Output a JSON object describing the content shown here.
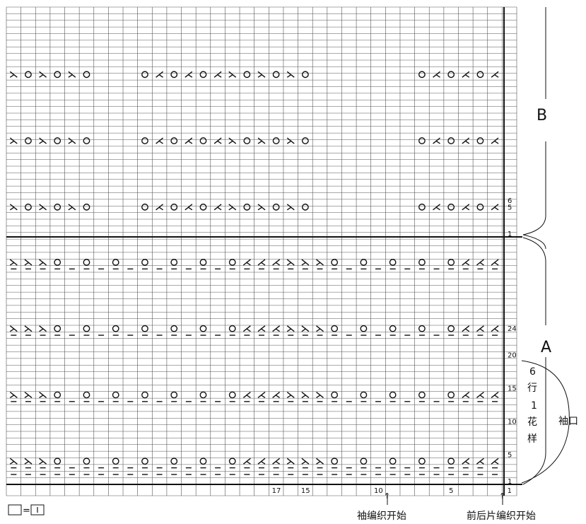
{
  "grid": {
    "columns": 35,
    "rows": 72,
    "x_numbers": [
      "17",
      "15",
      "10",
      "5",
      "1"
    ],
    "x_number_cols": [
      17,
      15,
      10,
      5,
      1
    ],
    "row_numbers_A": [
      "24",
      "20",
      "15",
      "10",
      "5",
      "1"
    ],
    "row_numbers_A_rows": [
      24,
      20,
      15,
      10,
      5,
      1
    ],
    "row_numbers_B": [
      "6",
      "5",
      "1"
    ],
    "row_numbers_B_rows": [
      6,
      5,
      1
    ]
  },
  "symbols": {
    "yo": "O",
    "k2tog": "⋌",
    "ssk": "⋋",
    "purl": "−"
  },
  "section_B": {
    "label": "B",
    "pattern_rows": [
      5,
      15,
      25
    ],
    "groups": [
      {
        "start_col": 35,
        "seq": [
          "ssk",
          "yo",
          "ssk",
          "yo",
          "ssk",
          "yo"
        ]
      },
      {
        "start_col": 26,
        "seq": [
          "yo",
          "k2tog",
          "yo",
          "k2tog",
          "yo",
          "k2tog",
          "ssk",
          "yo",
          "ssk",
          "yo",
          "ssk",
          "yo"
        ]
      },
      {
        "start_col": 7,
        "seq": [
          "yo",
          "k2tog",
          "yo",
          "k2tog",
          "yo",
          "k2tog"
        ]
      }
    ]
  },
  "section_A": {
    "label": "A",
    "lace_rows": [
      4,
      14,
      24,
      34
    ],
    "purl_rows": [
      2,
      3,
      13,
      23,
      33
    ],
    "lace_sequence": [
      "ssk",
      "ssk",
      "ssk",
      "yo",
      "",
      "yo",
      "",
      "yo",
      "",
      "yo",
      "",
      "yo",
      "",
      "yo",
      "",
      "yo",
      "k2tog",
      "k2tog",
      "k2tog",
      "ssk",
      "ssk",
      "ssk",
      "yo",
      "",
      "yo",
      "",
      "yo",
      "",
      "yo",
      "",
      "yo",
      "k2tog",
      "k2tog",
      "k2tog",
      ""
    ]
  },
  "annotations": {
    "repeat_text": [
      "6",
      "行",
      "1",
      "花",
      "样"
    ],
    "cuff_label": "袖口",
    "sleeve_start": "袖编织开始",
    "body_start": "前后片编织开始",
    "legend_eq": "=",
    "arrow": "↑"
  },
  "colors": {
    "ink": "#111111",
    "grid": "#555555",
    "paper": "#ffffff"
  }
}
